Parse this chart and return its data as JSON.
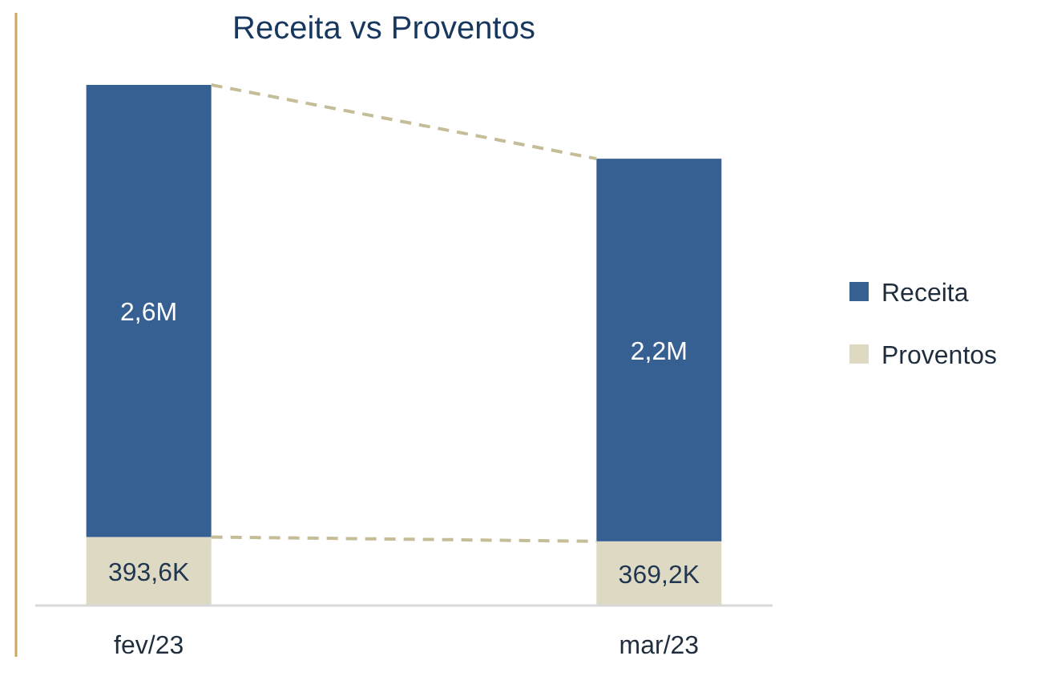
{
  "chart_data": {
    "type": "bar",
    "title": "Receita vs Proventos",
    "stacked": true,
    "categories": [
      "fev/23",
      "mar/23"
    ],
    "series": [
      {
        "name": "Proventos",
        "color": "#ddd9c3",
        "values": [
          393600,
          369200
        ],
        "value_labels": [
          "393,6K",
          "369,2K"
        ]
      },
      {
        "name": "Receita",
        "color": "#366092",
        "values": [
          2600000,
          2200000
        ],
        "value_labels": [
          "2,6M",
          "2,2M"
        ]
      }
    ],
    "legend": "right"
  }
}
